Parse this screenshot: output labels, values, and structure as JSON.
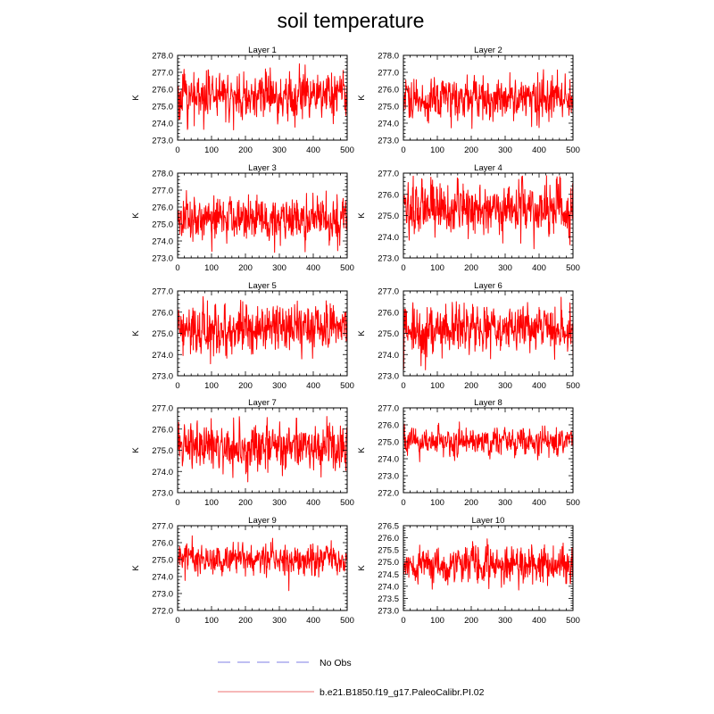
{
  "title": "soil temperature",
  "series_color": "#ff0000",
  "legend": {
    "entries": [
      {
        "label": "No Obs",
        "color": "#aaaaee",
        "style": "dashed"
      },
      {
        "label": "b.e21.B1850.f19_g17.PaleoCalibr.PI.02",
        "color": "#f4a0a0",
        "style": "solid"
      }
    ]
  },
  "chart_data": [
    {
      "type": "line",
      "title": "Layer 1",
      "ylabel": "K",
      "xlim": [
        0,
        500
      ],
      "ylim": [
        273.0,
        278.0
      ],
      "xticks": [
        "0",
        "100",
        "200",
        "300",
        "400",
        "500"
      ],
      "yticks": [
        "273.0",
        "274.0",
        "275.0",
        "276.0",
        "277.0",
        "278.0"
      ],
      "series": [
        {
          "mean": 275.6,
          "spread": 0.75,
          "min": 273.6,
          "max": 277.5
        }
      ]
    },
    {
      "type": "line",
      "title": "Layer 2",
      "ylabel": "K",
      "xlim": [
        0,
        500
      ],
      "ylim": [
        273.0,
        278.0
      ],
      "xticks": [
        "0",
        "100",
        "200",
        "300",
        "400",
        "500"
      ],
      "yticks": [
        "273.0",
        "274.0",
        "275.0",
        "276.0",
        "277.0",
        "278.0"
      ],
      "series": [
        {
          "mean": 275.5,
          "spread": 0.7,
          "min": 273.4,
          "max": 277.2
        }
      ]
    },
    {
      "type": "line",
      "title": "Layer 3",
      "ylabel": "K",
      "xlim": [
        0,
        500
      ],
      "ylim": [
        273.0,
        278.0
      ],
      "xticks": [
        "0",
        "100",
        "200",
        "300",
        "400",
        "500"
      ],
      "yticks": [
        "273.0",
        "274.0",
        "275.0",
        "276.0",
        "277.0",
        "278.0"
      ],
      "series": [
        {
          "mean": 275.3,
          "spread": 0.7,
          "min": 273.3,
          "max": 277.0
        }
      ]
    },
    {
      "type": "line",
      "title": "Layer 4",
      "ylabel": "K",
      "xlim": [
        0,
        500
      ],
      "ylim": [
        273.0,
        277.0
      ],
      "xticks": [
        "0",
        "100",
        "200",
        "300",
        "400",
        "500"
      ],
      "yticks": [
        "273.0",
        "274.0",
        "275.0",
        "276.0",
        "277.0"
      ],
      "series": [
        {
          "mean": 275.3,
          "spread": 0.7,
          "min": 273.2,
          "max": 276.9
        }
      ]
    },
    {
      "type": "line",
      "title": "Layer 5",
      "ylabel": "K",
      "xlim": [
        0,
        500
      ],
      "ylim": [
        273.0,
        277.0
      ],
      "xticks": [
        "0",
        "100",
        "200",
        "300",
        "400",
        "500"
      ],
      "yticks": [
        "273.0",
        "274.0",
        "275.0",
        "276.0",
        "277.0"
      ],
      "series": [
        {
          "mean": 275.2,
          "spread": 0.7,
          "min": 273.2,
          "max": 276.8
        }
      ]
    },
    {
      "type": "line",
      "title": "Layer 6",
      "ylabel": "K",
      "xlim": [
        0,
        500
      ],
      "ylim": [
        273.0,
        277.0
      ],
      "xticks": [
        "0",
        "100",
        "200",
        "300",
        "400",
        "500"
      ],
      "yticks": [
        "273.0",
        "274.0",
        "275.0",
        "276.0",
        "277.0"
      ],
      "series": [
        {
          "mean": 275.2,
          "spread": 0.65,
          "min": 273.2,
          "max": 276.8
        }
      ]
    },
    {
      "type": "line",
      "title": "Layer 7",
      "ylabel": "K",
      "xlim": [
        0,
        500
      ],
      "ylim": [
        273.0,
        277.0
      ],
      "xticks": [
        "0",
        "100",
        "200",
        "300",
        "400",
        "500"
      ],
      "yticks": [
        "273.0",
        "274.0",
        "275.0",
        "276.0",
        "277.0"
      ],
      "series": [
        {
          "mean": 275.1,
          "spread": 0.65,
          "min": 273.1,
          "max": 276.6
        }
      ]
    },
    {
      "type": "line",
      "title": "Layer 8",
      "ylabel": "K",
      "xlim": [
        0,
        500
      ],
      "ylim": [
        272.0,
        277.0
      ],
      "xticks": [
        "0",
        "100",
        "200",
        "300",
        "400",
        "500"
      ],
      "yticks": [
        "272.0",
        "273.0",
        "274.0",
        "275.0",
        "276.0",
        "277.0"
      ],
      "series": [
        {
          "mean": 275.0,
          "spread": 0.45,
          "min": 273.5,
          "max": 276.3
        }
      ]
    },
    {
      "type": "line",
      "title": "Layer 9",
      "ylabel": "K",
      "xlim": [
        0,
        500
      ],
      "ylim": [
        272.0,
        277.0
      ],
      "xticks": [
        "0",
        "100",
        "200",
        "300",
        "400",
        "500"
      ],
      "yticks": [
        "272.0",
        "273.0",
        "274.0",
        "275.0",
        "276.0",
        "277.0"
      ],
      "series": [
        {
          "mean": 275.0,
          "spread": 0.5,
          "min": 273.0,
          "max": 276.5
        }
      ]
    },
    {
      "type": "line",
      "title": "Layer 10",
      "ylabel": "K",
      "xlim": [
        0,
        500
      ],
      "ylim": [
        273.0,
        276.5
      ],
      "xticks": [
        "0",
        "100",
        "200",
        "300",
        "400",
        "500"
      ],
      "yticks": [
        "273.0",
        "273.5",
        "274.0",
        "274.5",
        "275.0",
        "275.5",
        "276.0",
        "276.5"
      ],
      "series": [
        {
          "mean": 274.9,
          "spread": 0.45,
          "min": 273.0,
          "max": 276.4
        }
      ]
    }
  ]
}
